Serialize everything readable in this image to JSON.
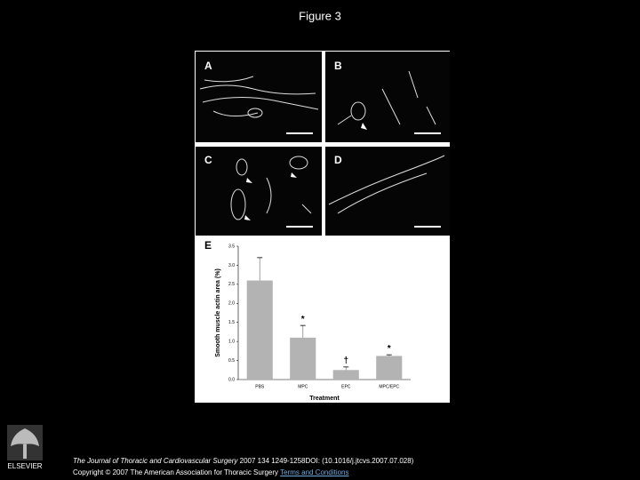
{
  "header": {
    "title": "Figure 3"
  },
  "panels": {
    "labels": [
      "A",
      "B",
      "C",
      "D"
    ]
  },
  "chart_data": {
    "type": "bar",
    "panel_label": "E",
    "categories": [
      "PBS",
      "MPC",
      "EPC",
      "MPC/EPC"
    ],
    "values": [
      2.6,
      1.1,
      0.25,
      0.62
    ],
    "errors": [
      0.6,
      0.32,
      0.08,
      0.03
    ],
    "significance": [
      null,
      "*",
      "†",
      "*"
    ],
    "color": "#b3b3b3",
    "x_label": "Treatment",
    "y_label": "Smooth muscle actin area (%)",
    "ylim": [
      0,
      3.5
    ],
    "yticks": [
      {
        "value": 0,
        "label": "0.0"
      },
      0.5,
      {
        "value": 1,
        "label": "1.0"
      },
      1.5,
      {
        "value": 2,
        "label": "2.0"
      },
      2.5,
      {
        "value": 3,
        "label": "3.0"
      },
      3.5
    ]
  },
  "footer": {
    "publisher": "ELSEVIER",
    "citation_journal": "The Journal of Thoracic and Cardiovascular Surgery",
    "citation_rest": " 2007 134 1249-1258DOI: (10.1016/j.jtcvs.2007.07.028)",
    "copyright": "Copyright © 2007 The American Association for Thoracic Surgery ",
    "terms_link": "Terms and Conditions"
  }
}
